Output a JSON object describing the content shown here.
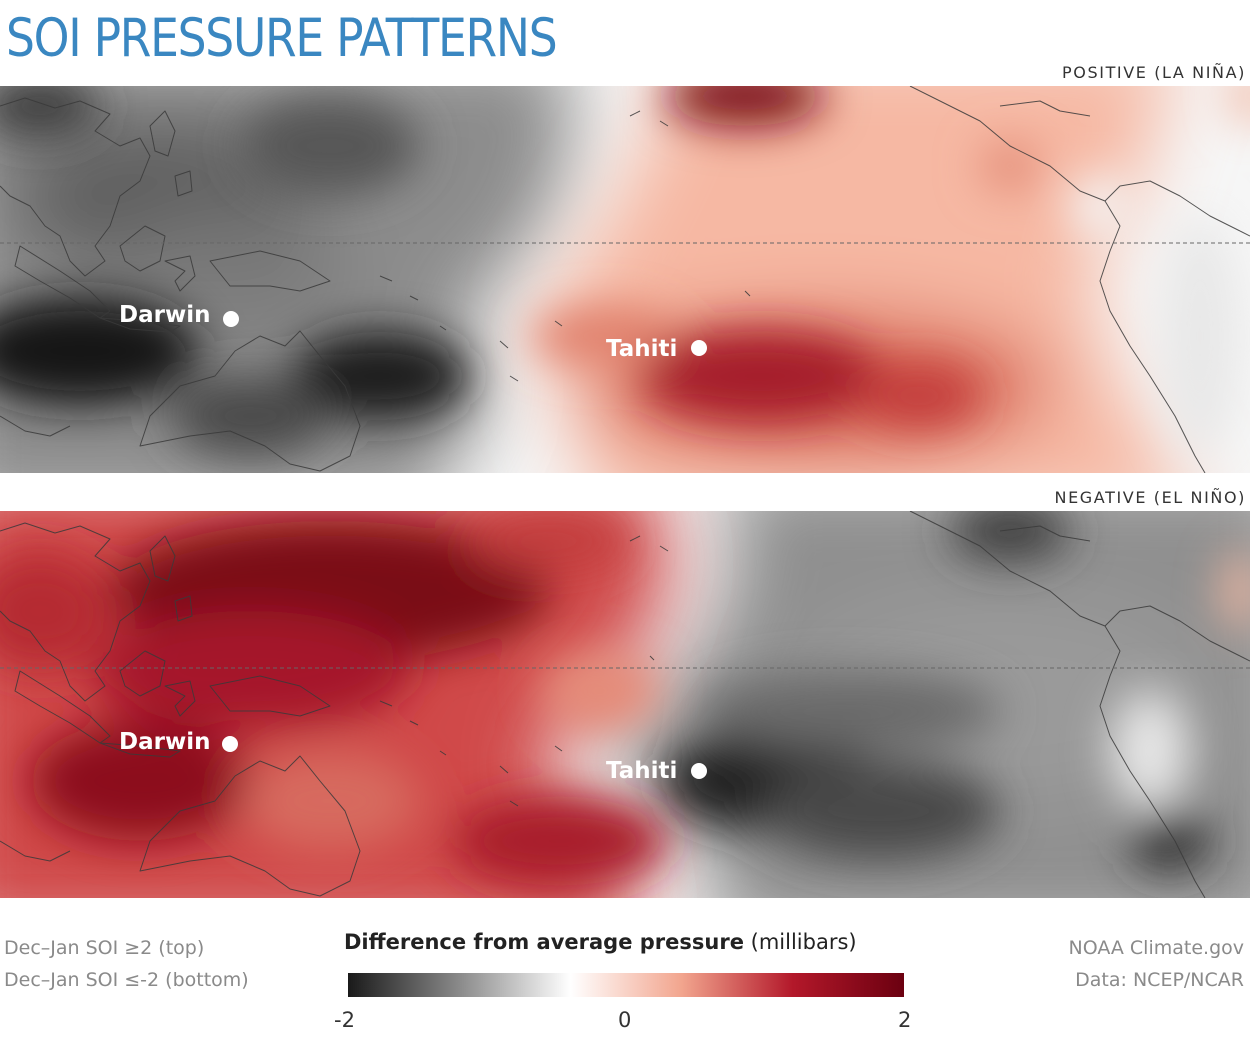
{
  "title": "SOI PRESSURE PATTERNS",
  "panels": [
    {
      "id": "top",
      "label": "POSITIVE (LA NIÑA)",
      "stations": [
        {
          "name": "Darwin"
        },
        {
          "name": "Tahiti"
        }
      ]
    },
    {
      "id": "bottom",
      "label": "NEGATIVE (EL NIÑO)",
      "stations": [
        {
          "name": "Darwin"
        },
        {
          "name": "Tahiti"
        }
      ]
    }
  ],
  "footnote": {
    "line1": "Dec–Jan SOI ≥2 (top)",
    "line2": "Dec–Jan SOI ≤-2 (bottom)"
  },
  "legend": {
    "title_bold": "Difference from average pressure",
    "title_unit": "(millibars)",
    "min_label": "-2",
    "mid_label": "0",
    "max_label": "2",
    "colors": [
      "#1a1a1a",
      "#8a8a8a",
      "#ffffff",
      "#f2a58e",
      "#b3182a",
      "#6b0010"
    ]
  },
  "credits": {
    "line1": "NOAA Climate.gov",
    "line2": "Data: NCEP/NCAR"
  }
}
